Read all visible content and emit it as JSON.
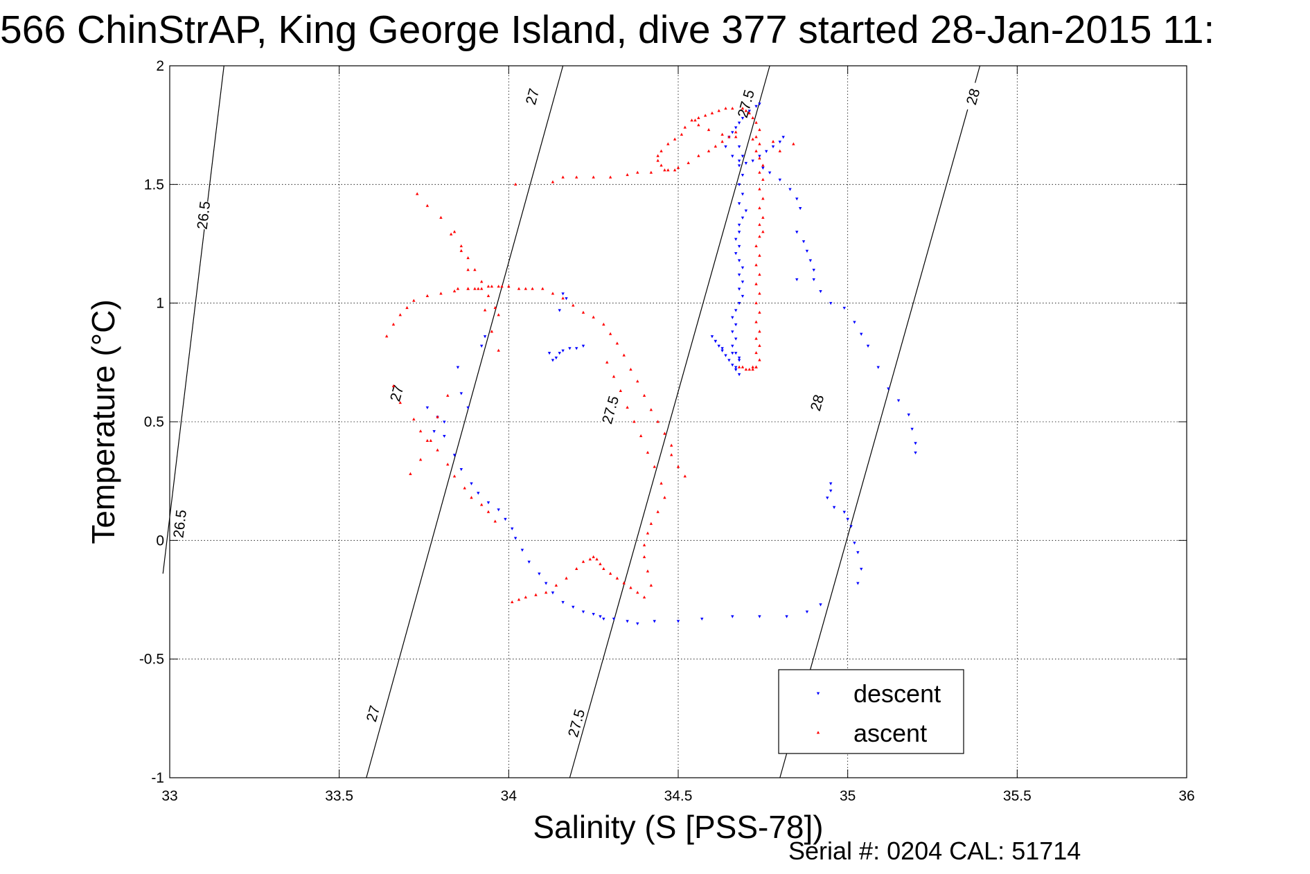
{
  "chart_data": {
    "type": "scatter",
    "title": "566 ChinStrAP, King George Island, dive 377 started 28-Jan-2015 11:",
    "xlabel": "Salinity (S [PSS-78])",
    "ylabel": "Temperature (°C)",
    "xlim": [
      33,
      36
    ],
    "ylim": [
      -1,
      2
    ],
    "xticks": [
      33,
      33.5,
      34,
      34.5,
      35,
      35.5,
      36
    ],
    "xtick_labels": [
      "33",
      "33.5",
      "34",
      "34.5",
      "35",
      "35.5",
      "36"
    ],
    "yticks": [
      -1,
      -0.5,
      0,
      0.5,
      1,
      1.5,
      2
    ],
    "ytick_labels": [
      "-1",
      "-0.5",
      "0",
      "0.5",
      "1",
      "1.5",
      "2"
    ],
    "grid": true,
    "legend_position": "bottom-right",
    "footer": "Serial #: 0204  CAL: 51714",
    "isopycnals": [
      {
        "label": "26.5",
        "points": [
          [
            32.98,
            -0.14
          ],
          [
            33.16,
            2.0
          ]
        ],
        "label_positions": [
          [
            33.03,
            0.07
          ],
          [
            33.1,
            1.37
          ]
        ]
      },
      {
        "label": "27",
        "points": [
          [
            33.58,
            -1.0
          ],
          [
            34.16,
            2.0
          ]
        ],
        "label_positions": [
          [
            33.6,
            -0.73
          ],
          [
            33.67,
            0.62
          ],
          [
            34.07,
            1.87
          ]
        ]
      },
      {
        "label": "27.5",
        "points": [
          [
            34.18,
            -1.0
          ],
          [
            34.77,
            2.0
          ]
        ],
        "label_positions": [
          [
            34.2,
            -0.77
          ],
          [
            34.3,
            0.55
          ],
          [
            34.7,
            1.84
          ]
        ]
      },
      {
        "label": "28",
        "points": [
          [
            34.8,
            -1.0
          ],
          [
            35.39,
            2.0
          ]
        ],
        "label_positions": [
          [
            34.91,
            0.58
          ],
          [
            35.37,
            1.87
          ]
        ]
      }
    ],
    "series": [
      {
        "name": "descent",
        "color": "#0000ff",
        "marker": "triangle-down",
        "x": [
          34.74,
          34.73,
          34.71,
          34.69,
          34.68,
          34.67,
          34.66,
          34.65,
          34.64,
          34.66,
          34.68,
          34.7,
          34.72,
          34.74,
          34.76,
          34.78,
          34.8,
          34.81,
          34.68,
          34.69,
          34.68,
          34.69,
          34.68,
          34.69,
          34.68,
          34.7,
          34.69,
          34.68,
          34.68,
          34.67,
          34.68,
          34.67,
          34.68,
          34.69,
          34.68,
          34.69,
          34.68,
          34.69,
          34.68,
          34.67,
          34.66,
          34.67,
          34.66,
          34.67,
          34.66,
          34.67,
          34.68,
          34.67,
          34.68,
          34.67,
          34.66,
          34.65,
          34.64,
          34.63,
          34.62,
          34.61,
          34.6,
          34.61,
          34.63,
          34.66,
          34.68,
          34.75,
          34.77,
          34.8,
          34.83,
          34.85,
          34.86,
          34.85,
          34.87,
          34.88,
          34.89,
          34.9,
          34.85,
          34.9,
          34.92,
          34.95,
          34.99,
          35.02,
          35.04,
          35.06,
          35.09,
          35.12,
          35.15,
          35.18,
          35.19,
          35.2,
          35.2,
          34.95,
          34.95,
          34.94,
          34.96,
          34.99,
          35.0,
          35.01,
          35.02,
          35.03,
          35.04,
          35.03,
          34.92,
          34.88,
          34.82,
          34.74,
          34.66,
          34.57,
          34.5,
          34.43,
          34.38,
          34.35,
          34.31,
          34.28,
          34.27,
          34.25,
          34.22,
          34.19,
          34.16,
          34.13,
          34.11,
          34.09,
          34.06,
          34.04,
          34.02,
          34.01,
          33.99,
          33.97,
          33.94,
          33.91,
          33.89,
          33.86,
          33.84,
          33.81,
          33.79,
          33.76,
          33.86,
          33.88,
          33.81,
          33.78,
          33.85,
          33.92,
          33.93,
          34.16,
          34.17,
          34.15,
          34.12,
          34.13,
          34.14,
          34.15,
          34.16,
          34.18,
          34.2,
          34.22
        ],
        "y": [
          1.84,
          1.83,
          1.81,
          1.78,
          1.76,
          1.74,
          1.72,
          1.7,
          1.66,
          1.62,
          1.6,
          1.59,
          1.6,
          1.62,
          1.64,
          1.66,
          1.68,
          1.7,
          1.66,
          1.62,
          1.58,
          1.54,
          1.5,
          1.46,
          1.42,
          1.39,
          1.36,
          1.33,
          1.3,
          1.27,
          1.24,
          1.21,
          1.18,
          1.15,
          1.12,
          1.09,
          1.06,
          1.03,
          1.0,
          0.97,
          0.94,
          0.91,
          0.88,
          0.85,
          0.82,
          0.79,
          0.76,
          0.73,
          0.7,
          0.72,
          0.74,
          0.76,
          0.78,
          0.8,
          0.82,
          0.84,
          0.86,
          0.84,
          0.81,
          0.79,
          0.77,
          1.57,
          1.55,
          1.52,
          1.48,
          1.44,
          1.4,
          1.3,
          1.26,
          1.22,
          1.18,
          1.14,
          1.1,
          1.1,
          1.05,
          1.0,
          0.98,
          0.92,
          0.87,
          0.82,
          0.73,
          0.64,
          0.59,
          0.53,
          0.47,
          0.41,
          0.37,
          0.24,
          0.21,
          0.18,
          0.14,
          0.12,
          0.09,
          0.06,
          -0.01,
          -0.05,
          -0.12,
          -0.18,
          -0.27,
          -0.3,
          -0.32,
          -0.32,
          -0.32,
          -0.33,
          -0.34,
          -0.34,
          -0.35,
          -0.34,
          -0.33,
          -0.33,
          -0.32,
          -0.31,
          -0.3,
          -0.28,
          -0.26,
          -0.22,
          -0.18,
          -0.14,
          -0.09,
          -0.04,
          0.01,
          0.05,
          0.09,
          0.13,
          0.16,
          0.2,
          0.24,
          0.3,
          0.36,
          0.44,
          0.52,
          0.56,
          0.62,
          0.56,
          0.5,
          0.46,
          0.73,
          0.82,
          0.86,
          1.04,
          1.02,
          0.97,
          0.79,
          0.76,
          0.77,
          0.79,
          0.8,
          0.81,
          0.81,
          0.82
        ]
      },
      {
        "name": "ascent",
        "color": "#ff0000",
        "marker": "triangle-up",
        "x": [
          34.73,
          34.74,
          34.73,
          34.74,
          34.73,
          34.74,
          34.73,
          34.74,
          34.73,
          34.74,
          34.73,
          34.74,
          34.73,
          34.74,
          34.73,
          34.74,
          34.75,
          34.74,
          34.75,
          34.74,
          34.75,
          34.74,
          34.75,
          34.74,
          34.75,
          34.74,
          34.73,
          34.74,
          34.73,
          34.74,
          34.73,
          34.72,
          34.71,
          34.7,
          34.69,
          34.72,
          34.73,
          34.72,
          34.71,
          34.7,
          34.69,
          34.68,
          34.66,
          34.64,
          34.62,
          34.6,
          34.58,
          34.56,
          34.55,
          34.56,
          34.59,
          34.63,
          34.67,
          34.72,
          34.78,
          34.84,
          34.8,
          34.54,
          34.52,
          34.51,
          34.49,
          34.47,
          34.45,
          34.44,
          34.44,
          34.45,
          34.47,
          34.5,
          34.53,
          34.56,
          34.59,
          34.61,
          34.63,
          34.65,
          34.67,
          34.49,
          34.46,
          34.42,
          34.38,
          34.35,
          34.3,
          34.25,
          34.2,
          34.16,
          34.1,
          34.13,
          34.16,
          34.19,
          34.22,
          34.25,
          34.28,
          34.3,
          34.32,
          34.34,
          34.36,
          34.38,
          34.4,
          34.42,
          34.44,
          34.46,
          34.48,
          34.48,
          34.5,
          34.52,
          34.29,
          34.31,
          34.33,
          34.35,
          34.37,
          34.39,
          34.41,
          34.43,
          34.45,
          34.46,
          34.44,
          34.42,
          34.41,
          34.4,
          34.4,
          34.41,
          34.42,
          34.4,
          34.38,
          34.36,
          34.34,
          34.32,
          34.3,
          34.28,
          34.27,
          34.26,
          34.25,
          34.24,
          34.22,
          34.2,
          34.17,
          34.14,
          34.11,
          34.08,
          34.05,
          34.03,
          34.01,
          33.98,
          33.95,
          33.92,
          33.88,
          33.84,
          33.8,
          33.76,
          33.72,
          33.7,
          33.68,
          33.66,
          33.64,
          33.73,
          33.76,
          33.8,
          33.83,
          33.86,
          33.88,
          33.9,
          33.93,
          33.95,
          33.97,
          33.85,
          33.88,
          33.91,
          33.94,
          33.97,
          34.0,
          34.03,
          34.05,
          34.07,
          33.84,
          33.86,
          33.88,
          33.9,
          33.92,
          33.94,
          33.96,
          33.97,
          33.66,
          33.68,
          33.72,
          33.74,
          33.77,
          33.79,
          33.82,
          33.84,
          33.87,
          33.89,
          33.92,
          33.94,
          33.96,
          33.71,
          33.74,
          33.76,
          33.79,
          33.82,
          34.02,
          34.13
        ],
        "y": [
          0.73,
          0.76,
          0.79,
          0.82,
          0.85,
          0.88,
          0.92,
          0.96,
          1.0,
          1.04,
          1.08,
          1.12,
          1.16,
          1.2,
          1.24,
          1.28,
          1.3,
          1.33,
          1.36,
          1.4,
          1.44,
          1.48,
          1.52,
          1.55,
          1.58,
          1.61,
          1.64,
          1.67,
          1.7,
          1.73,
          1.76,
          1.78,
          1.8,
          1.81,
          1.82,
          0.72,
          0.73,
          0.73,
          0.72,
          0.72,
          0.73,
          0.73,
          1.82,
          1.82,
          1.81,
          1.8,
          1.79,
          1.78,
          1.77,
          1.75,
          1.73,
          1.71,
          1.7,
          1.69,
          1.68,
          1.67,
          1.64,
          1.77,
          1.74,
          1.71,
          1.69,
          1.67,
          1.64,
          1.62,
          1.6,
          1.58,
          1.56,
          1.57,
          1.59,
          1.62,
          1.64,
          1.66,
          1.68,
          1.7,
          1.72,
          1.56,
          1.56,
          1.55,
          1.55,
          1.54,
          1.53,
          1.53,
          1.53,
          1.53,
          1.06,
          1.04,
          1.02,
          0.99,
          0.96,
          0.94,
          0.91,
          0.87,
          0.83,
          0.78,
          0.72,
          0.67,
          0.61,
          0.55,
          0.5,
          0.45,
          0.4,
          0.36,
          0.31,
          0.27,
          0.75,
          0.69,
          0.63,
          0.56,
          0.5,
          0.44,
          0.37,
          0.31,
          0.24,
          0.18,
          0.12,
          0.07,
          0.03,
          -0.02,
          -0.07,
          -0.13,
          -0.19,
          -0.24,
          -0.22,
          -0.2,
          -0.18,
          -0.16,
          -0.14,
          -0.12,
          -0.1,
          -0.08,
          -0.07,
          -0.08,
          -0.09,
          -0.12,
          -0.16,
          -0.19,
          -0.22,
          -0.23,
          -0.24,
          -0.25,
          -0.26,
          1.07,
          1.07,
          1.06,
          1.06,
          1.05,
          1.04,
          1.03,
          1.01,
          0.98,
          0.95,
          0.91,
          0.86,
          1.46,
          1.41,
          1.36,
          1.29,
          1.22,
          1.14,
          1.06,
          0.97,
          0.88,
          0.8,
          1.06,
          1.06,
          1.06,
          1.07,
          1.07,
          1.07,
          1.06,
          1.06,
          1.06,
          1.3,
          1.24,
          1.19,
          1.14,
          1.09,
          1.03,
          0.98,
          0.95,
          0.65,
          0.58,
          0.51,
          0.46,
          0.42,
          0.38,
          0.32,
          0.27,
          0.22,
          0.18,
          0.15,
          0.12,
          0.08,
          0.28,
          0.34,
          0.42,
          0.52,
          0.61,
          1.5,
          1.51
        ]
      }
    ]
  }
}
